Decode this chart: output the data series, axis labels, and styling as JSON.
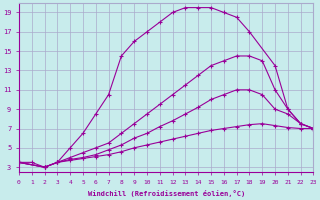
{
  "xlabel": "Windchill (Refroidissement éolien,°C)",
  "bg_color": "#c8ecec",
  "grid_color": "#aaaacc",
  "line_color": "#990099",
  "x_ticks": [
    0,
    1,
    2,
    3,
    4,
    5,
    6,
    7,
    8,
    9,
    10,
    11,
    12,
    13,
    14,
    15,
    16,
    17,
    18,
    19,
    20,
    21,
    22,
    23
  ],
  "y_ticks": [
    3,
    5,
    7,
    9,
    11,
    13,
    15,
    17,
    19
  ],
  "xlim": [
    0,
    23
  ],
  "ylim": [
    2.5,
    20.0
  ],
  "series": [
    {
      "x": [
        0,
        1,
        2,
        3,
        4,
        5,
        6,
        7,
        8,
        9,
        10,
        11,
        12,
        13,
        14,
        15,
        16,
        17,
        18,
        20,
        21,
        22,
        23
      ],
      "y": [
        3.5,
        3.5,
        3.0,
        3.5,
        5.0,
        6.5,
        8.5,
        10.5,
        14.5,
        16.0,
        17.0,
        18.0,
        19.0,
        19.5,
        19.5,
        19.5,
        19.0,
        18.5,
        17.0,
        13.5,
        9.0,
        7.5,
        7.0
      ]
    },
    {
      "x": [
        0,
        2,
        3,
        4,
        5,
        6,
        7,
        8,
        9,
        10,
        11,
        12,
        13,
        14,
        15,
        16,
        17,
        18,
        19,
        20,
        21,
        22,
        23
      ],
      "y": [
        3.5,
        3.0,
        3.5,
        4.0,
        4.5,
        5.0,
        5.5,
        6.5,
        7.5,
        8.5,
        9.5,
        10.5,
        11.5,
        12.5,
        13.5,
        14.0,
        14.5,
        14.5,
        14.0,
        11.0,
        9.0,
        7.5,
        7.0
      ]
    },
    {
      "x": [
        0,
        2,
        3,
        4,
        5,
        6,
        7,
        8,
        9,
        10,
        11,
        12,
        13,
        14,
        15,
        16,
        17,
        18,
        19,
        20,
        21,
        22,
        23
      ],
      "y": [
        3.5,
        3.0,
        3.5,
        3.8,
        4.0,
        4.3,
        4.8,
        5.3,
        6.0,
        6.5,
        7.2,
        7.8,
        8.5,
        9.2,
        10.0,
        10.5,
        11.0,
        11.0,
        10.5,
        9.0,
        8.5,
        7.5,
        7.0
      ]
    },
    {
      "x": [
        0,
        2,
        3,
        4,
        5,
        6,
        7,
        8,
        9,
        10,
        11,
        12,
        13,
        14,
        15,
        16,
        17,
        18,
        19,
        20,
        21,
        22,
        23
      ],
      "y": [
        3.5,
        3.0,
        3.5,
        3.7,
        3.9,
        4.1,
        4.3,
        4.6,
        5.0,
        5.3,
        5.6,
        5.9,
        6.2,
        6.5,
        6.8,
        7.0,
        7.2,
        7.4,
        7.5,
        7.3,
        7.1,
        7.0,
        7.0
      ]
    }
  ]
}
